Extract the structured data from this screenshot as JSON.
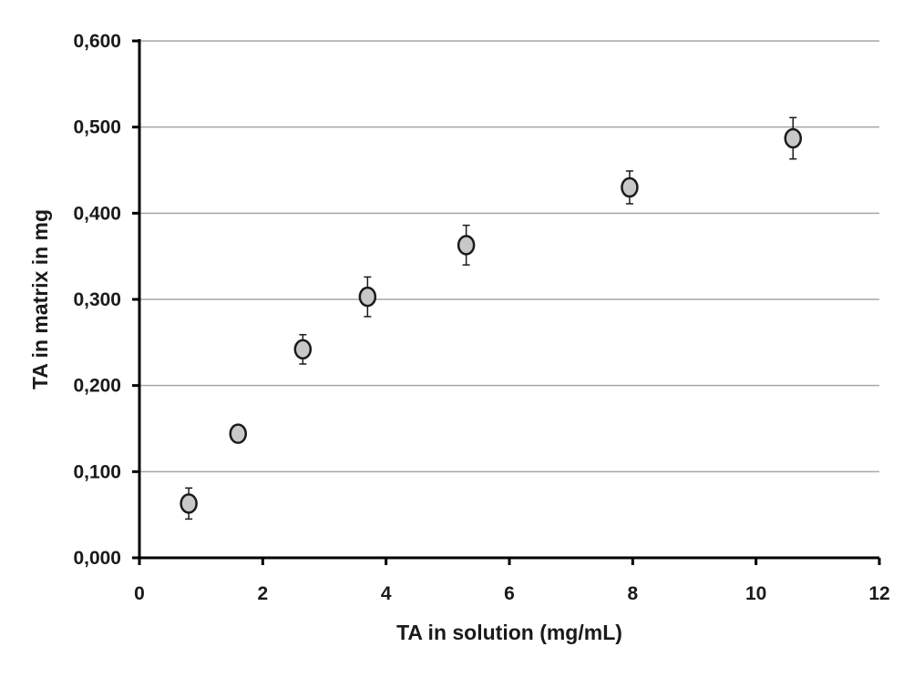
{
  "chart_data": {
    "type": "scatter",
    "title": "",
    "xlabel": "TA in solution (mg/mL)",
    "ylabel": "TA in matrix in mg",
    "xlim": [
      0,
      12
    ],
    "ylim": [
      0,
      0.6
    ],
    "x_ticks": [
      0,
      2,
      4,
      6,
      8,
      10,
      12
    ],
    "x_tick_labels": [
      "0",
      "2",
      "4",
      "6",
      "8",
      "10",
      "12"
    ],
    "y_ticks": [
      0,
      0.1,
      0.2,
      0.3,
      0.4,
      0.5,
      0.6
    ],
    "y_tick_labels": [
      "0,000",
      "0,100",
      "0,200",
      "0,300",
      "0,400",
      "0,500",
      "0,600"
    ],
    "grid": "horizontal",
    "legend": "none",
    "marker_fill": "#c8c8c8",
    "marker_stroke": "#1a1a1a",
    "series": [
      {
        "x": [
          0.8,
          1.6,
          2.65,
          3.7,
          5.3,
          7.95,
          10.6
        ],
        "y": [
          0.063,
          0.144,
          0.242,
          0.303,
          0.363,
          0.43,
          0.487
        ],
        "error": [
          0.018,
          0.0,
          0.017,
          0.023,
          0.023,
          0.019,
          0.024
        ]
      }
    ]
  }
}
